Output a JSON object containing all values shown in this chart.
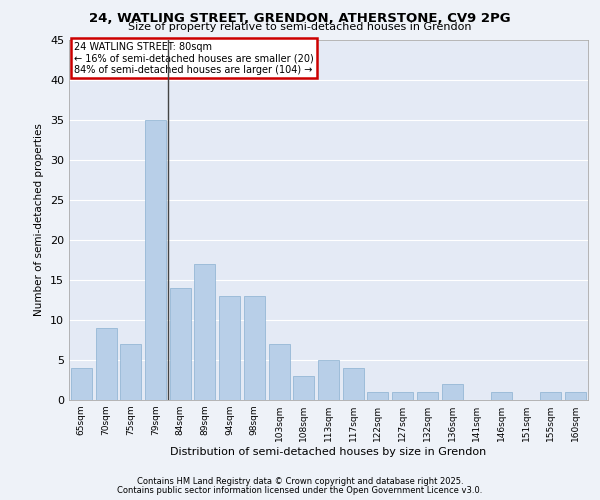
{
  "title1": "24, WATLING STREET, GRENDON, ATHERSTONE, CV9 2PG",
  "title2": "Size of property relative to semi-detached houses in Grendon",
  "xlabel": "Distribution of semi-detached houses by size in Grendon",
  "ylabel": "Number of semi-detached properties",
  "categories": [
    "65sqm",
    "70sqm",
    "75sqm",
    "79sqm",
    "84sqm",
    "89sqm",
    "94sqm",
    "98sqm",
    "103sqm",
    "108sqm",
    "113sqm",
    "117sqm",
    "122sqm",
    "127sqm",
    "132sqm",
    "136sqm",
    "141sqm",
    "146sqm",
    "151sqm",
    "155sqm",
    "160sqm"
  ],
  "values": [
    4,
    9,
    7,
    35,
    14,
    17,
    13,
    13,
    7,
    3,
    5,
    4,
    1,
    1,
    1,
    2,
    0,
    1,
    0,
    1,
    1
  ],
  "bar_color": "#b8cfe8",
  "bar_edge_color": "#8ab0d0",
  "subject_bar_index": 3,
  "subject_line_color": "#444444",
  "annotation_text": "24 WATLING STREET: 80sqm\n← 16% of semi-detached houses are smaller (20)\n84% of semi-detached houses are larger (104) →",
  "annotation_box_color": "#cc0000",
  "ylim": [
    0,
    45
  ],
  "yticks": [
    0,
    5,
    10,
    15,
    20,
    25,
    30,
    35,
    40,
    45
  ],
  "background_color": "#eef2f8",
  "plot_background": "#e4eaf5",
  "grid_color": "#ffffff",
  "footer1": "Contains HM Land Registry data © Crown copyright and database right 2025.",
  "footer2": "Contains public sector information licensed under the Open Government Licence v3.0."
}
